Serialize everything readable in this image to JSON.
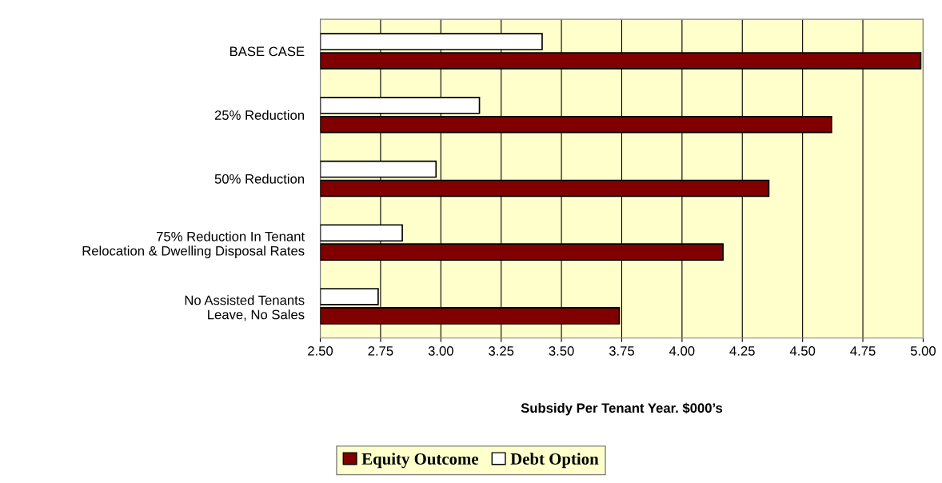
{
  "chart_data": {
    "type": "bar",
    "orientation": "horizontal",
    "xlabel": "Subsidy Per Tenant Year. $000’s",
    "categories": [
      "BASE CASE",
      "25% Reduction",
      "50% Reduction",
      "75% Reduction In Tenant\nRelocation & Dwelling Disposal Rates",
      "No Assisted Tenants\nLeave, No Sales"
    ],
    "series": [
      {
        "name": "Equity Outcome",
        "color": "#800000",
        "values": [
          4.99,
          4.62,
          4.36,
          4.17,
          3.74
        ]
      },
      {
        "name": "Debt Option",
        "color": "#ffffff",
        "values": [
          3.42,
          3.16,
          2.98,
          2.84,
          2.74
        ]
      }
    ],
    "xlim": [
      2.5,
      5.0
    ],
    "xticks": [
      {
        "value": 2.5,
        "label": "2.50"
      },
      {
        "value": 2.75,
        "label": "2.75"
      },
      {
        "value": 3.0,
        "label": "3.00"
      },
      {
        "value": 3.25,
        "label": "3.25"
      },
      {
        "value": 3.5,
        "label": "3.50"
      },
      {
        "value": 3.75,
        "label": "3.75"
      },
      {
        "value": 4.0,
        "label": "4.00"
      },
      {
        "value": 4.25,
        "label": "4.25"
      },
      {
        "value": 4.5,
        "label": "4.50"
      },
      {
        "value": 4.75,
        "label": "4.75"
      },
      {
        "value": 5.0,
        "label": "5.00"
      }
    ],
    "grid": "x",
    "legend": "bottom"
  }
}
